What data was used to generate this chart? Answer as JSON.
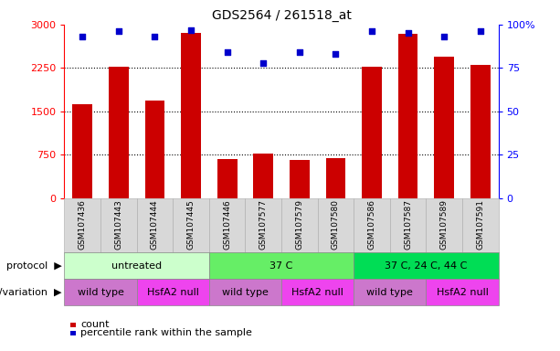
{
  "title": "GDS2564 / 261518_at",
  "samples": [
    "GSM107436",
    "GSM107443",
    "GSM107444",
    "GSM107445",
    "GSM107446",
    "GSM107577",
    "GSM107579",
    "GSM107580",
    "GSM107586",
    "GSM107587",
    "GSM107589",
    "GSM107591"
  ],
  "counts": [
    1620,
    2270,
    1690,
    2860,
    680,
    770,
    660,
    690,
    2270,
    2840,
    2450,
    2310
  ],
  "percentiles": [
    93,
    96,
    93,
    97,
    84,
    78,
    84,
    83,
    96,
    95,
    93,
    96
  ],
  "ylim_left": [
    0,
    3000
  ],
  "ylim_right": [
    0,
    100
  ],
  "yticks_left": [
    0,
    750,
    1500,
    2250,
    3000
  ],
  "yticks_right": [
    0,
    25,
    50,
    75,
    100
  ],
  "ytick_labels_right": [
    "0",
    "25",
    "50",
    "75",
    "100%"
  ],
  "protocol_groups": [
    {
      "label": "untreated",
      "start": 0,
      "end": 4,
      "color": "#ccffcc"
    },
    {
      "label": "37 C",
      "start": 4,
      "end": 8,
      "color": "#66ee66"
    },
    {
      "label": "37 C, 24 C, 44 C",
      "start": 8,
      "end": 12,
      "color": "#00dd55"
    }
  ],
  "genotype_groups": [
    {
      "label": "wild type",
      "start": 0,
      "end": 2,
      "color": "#cc77cc"
    },
    {
      "label": "HsfA2 null",
      "start": 2,
      "end": 4,
      "color": "#ee44ee"
    },
    {
      "label": "wild type",
      "start": 4,
      "end": 6,
      "color": "#cc77cc"
    },
    {
      "label": "HsfA2 null",
      "start": 6,
      "end": 8,
      "color": "#ee44ee"
    },
    {
      "label": "wild type",
      "start": 8,
      "end": 10,
      "color": "#cc77cc"
    },
    {
      "label": "HsfA2 null",
      "start": 10,
      "end": 12,
      "color": "#ee44ee"
    }
  ],
  "bar_color": "#cc0000",
  "dot_color": "#0000cc",
  "label_protocol": "protocol",
  "label_genotype": "genotype/variation",
  "legend_count": "count",
  "legend_percentile": "percentile rank within the sample",
  "sample_col_color": "#d8d8d8",
  "sample_col_edgecolor": "#aaaaaa"
}
